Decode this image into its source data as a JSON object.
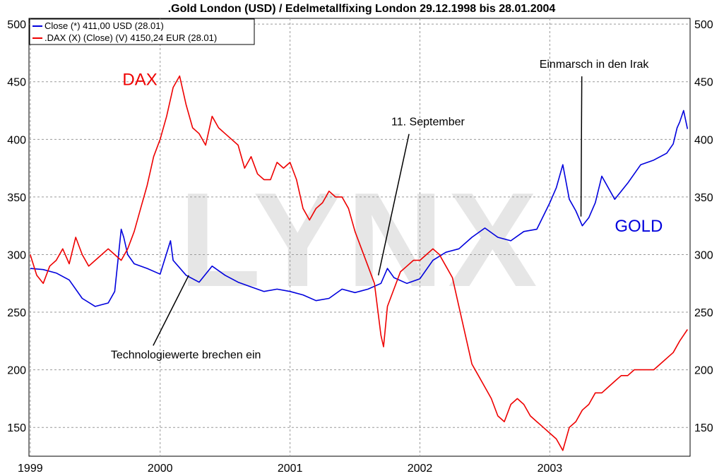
{
  "chart_data": {
    "type": "line",
    "title": ".Gold London (USD) / Edelmetallfixing London 29.12.1998 bis 28.01.2004",
    "watermark": "LYNX",
    "ylim": [
      125,
      505
    ],
    "y_ticks": [
      150,
      200,
      250,
      300,
      350,
      400,
      450,
      500
    ],
    "x_range": [
      1998.99,
      2004.08
    ],
    "x_ticks": [
      {
        "label": "1999",
        "x": 1999.0
      },
      {
        "label": "2000",
        "x": 2000.0
      },
      {
        "label": "2001",
        "x": 2001.0
      },
      {
        "label": "2002",
        "x": 2002.0
      },
      {
        "label": "2003",
        "x": 2003.0
      }
    ],
    "grid": true,
    "legend_position": "top-left",
    "series": [
      {
        "name": "Close (*) 411,00 USD (28.01)",
        "color": "#0000dd",
        "x": [
          1999.0,
          1999.1,
          1999.2,
          1999.3,
          1999.4,
          1999.5,
          1999.6,
          1999.65,
          1999.7,
          1999.72,
          1999.75,
          1999.8,
          1999.9,
          2000.0,
          2000.08,
          2000.1,
          2000.2,
          2000.3,
          2000.4,
          2000.5,
          2000.6,
          2000.7,
          2000.8,
          2000.9,
          2001.0,
          2001.1,
          2001.2,
          2001.3,
          2001.4,
          2001.5,
          2001.6,
          2001.7,
          2001.75,
          2001.8,
          2001.9,
          2002.0,
          2002.1,
          2002.2,
          2002.3,
          2002.4,
          2002.5,
          2002.6,
          2002.7,
          2002.8,
          2002.9,
          2003.0,
          2003.05,
          2003.1,
          2003.15,
          2003.2,
          2003.25,
          2003.3,
          2003.35,
          2003.4,
          2003.5,
          2003.6,
          2003.7,
          2003.8,
          2003.9,
          2003.95,
          2003.98,
          2004.0,
          2004.03,
          2004.06
        ],
        "values": [
          288,
          287,
          284,
          278,
          262,
          255,
          258,
          268,
          322,
          315,
          300,
          292,
          288,
          283,
          312,
          295,
          282,
          276,
          290,
          282,
          276,
          272,
          268,
          270,
          268,
          265,
          260,
          262,
          270,
          267,
          270,
          275,
          288,
          280,
          275,
          279,
          295,
          302,
          305,
          315,
          323,
          315,
          312,
          320,
          322,
          345,
          358,
          378,
          348,
          338,
          325,
          332,
          345,
          368,
          348,
          362,
          378,
          382,
          388,
          396,
          410,
          415,
          425,
          409
        ]
      },
      {
        "name": ".DAX (X) (Close) (V) 4150,24 EUR (28.01)",
        "color": "#ee0000",
        "x": [
          1999.0,
          1999.05,
          1999.1,
          1999.15,
          1999.2,
          1999.25,
          1999.3,
          1999.35,
          1999.4,
          1999.45,
          1999.5,
          1999.55,
          1999.6,
          1999.65,
          1999.7,
          1999.75,
          1999.8,
          1999.85,
          1999.9,
          1999.95,
          2000.0,
          2000.05,
          2000.1,
          2000.15,
          2000.2,
          2000.25,
          2000.3,
          2000.35,
          2000.4,
          2000.45,
          2000.5,
          2000.55,
          2000.6,
          2000.65,
          2000.7,
          2000.75,
          2000.8,
          2000.85,
          2000.9,
          2000.95,
          2001.0,
          2001.05,
          2001.1,
          2001.15,
          2001.2,
          2001.25,
          2001.3,
          2001.35,
          2001.4,
          2001.45,
          2001.5,
          2001.55,
          2001.6,
          2001.65,
          2001.7,
          2001.72,
          2001.75,
          2001.8,
          2001.85,
          2001.9,
          2001.95,
          2002.0,
          2002.05,
          2002.1,
          2002.15,
          2002.2,
          2002.25,
          2002.3,
          2002.35,
          2002.4,
          2002.45,
          2002.5,
          2002.55,
          2002.6,
          2002.65,
          2002.7,
          2002.75,
          2002.8,
          2002.85,
          2002.9,
          2002.95,
          2003.0,
          2003.05,
          2003.1,
          2003.15,
          2003.2,
          2003.25,
          2003.3,
          2003.35,
          2003.4,
          2003.45,
          2003.5,
          2003.55,
          2003.6,
          2003.65,
          2003.7,
          2003.75,
          2003.8,
          2003.85,
          2003.9,
          2003.95,
          2004.0,
          2004.03,
          2004.06
        ],
        "values": [
          300,
          282,
          275,
          290,
          295,
          305,
          292,
          315,
          300,
          290,
          295,
          300,
          305,
          300,
          295,
          305,
          320,
          340,
          360,
          385,
          400,
          420,
          445,
          455,
          430,
          410,
          405,
          395,
          420,
          410,
          405,
          400,
          395,
          375,
          385,
          370,
          365,
          365,
          380,
          375,
          380,
          365,
          340,
          330,
          340,
          345,
          355,
          350,
          350,
          340,
          320,
          305,
          290,
          275,
          230,
          220,
          255,
          270,
          285,
          290,
          295,
          295,
          300,
          305,
          300,
          290,
          280,
          255,
          230,
          205,
          195,
          185,
          175,
          160,
          155,
          170,
          175,
          170,
          160,
          155,
          150,
          145,
          140,
          130,
          150,
          155,
          165,
          170,
          180,
          180,
          185,
          190,
          195,
          195,
          200,
          200,
          200,
          200,
          205,
          210,
          215,
          225,
          230,
          235
        ]
      }
    ],
    "annotations": [
      {
        "text": "DAX",
        "color": "#ee0000",
        "x": 1999.71,
        "y": 447
      },
      {
        "text": "GOLD",
        "color": "#0000dd",
        "x": 2003.5,
        "y": 320
      },
      {
        "text": "Einmarsch in den Irak",
        "color": "#000000",
        "x": 2002.92,
        "y": 462,
        "point_x": 2003.24,
        "point_y": 333
      },
      {
        "text": "11. September",
        "color": "#000000",
        "x": 2001.78,
        "y": 412,
        "point_x": 2001.68,
        "point_y": 282
      },
      {
        "text": "Technologiewerte brechen ein",
        "color": "#000000",
        "x": 1999.62,
        "y": 210,
        "point_x": 2000.22,
        "point_y": 282
      }
    ]
  }
}
